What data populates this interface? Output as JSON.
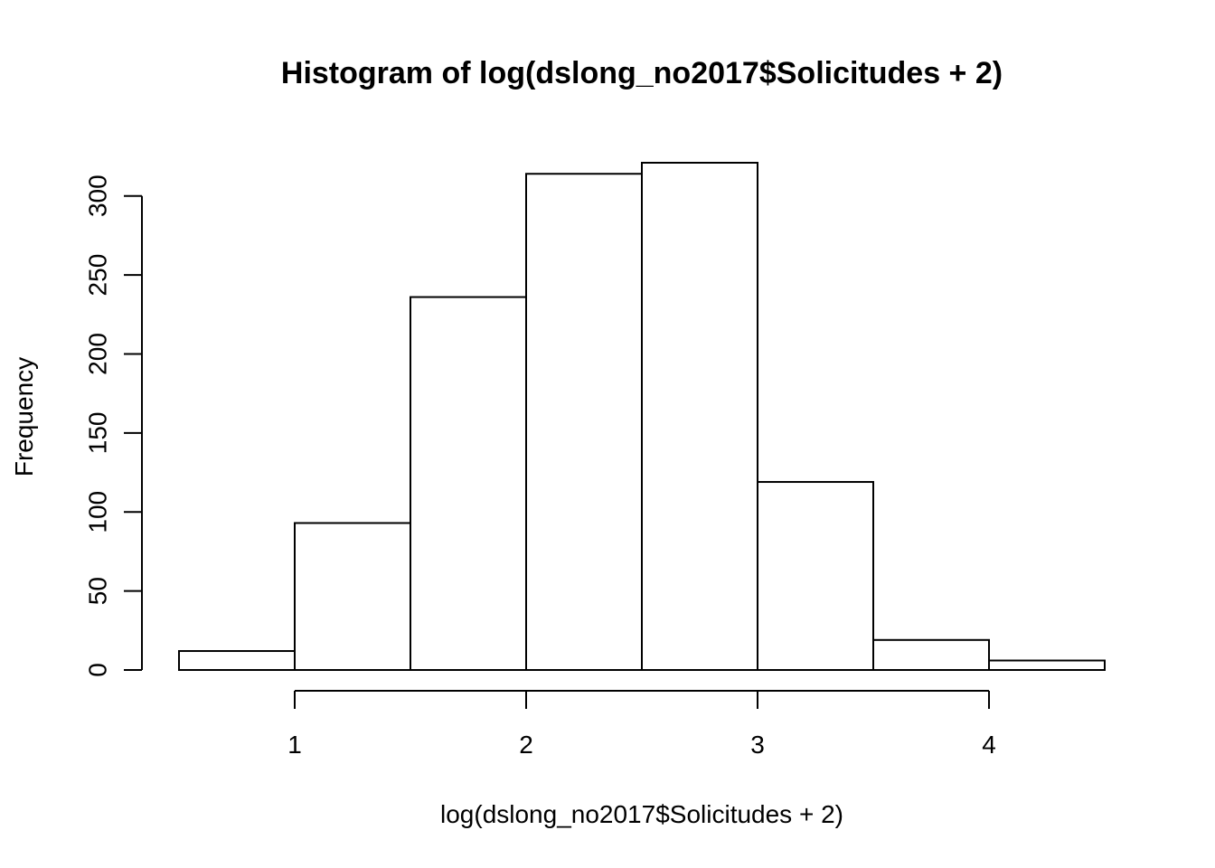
{
  "chart_data": {
    "type": "bar",
    "title": "Histogram of log(dslong_no2017$Solicitudes + 2)",
    "xlabel": "log(dslong_no2017$Solicitudes + 2)",
    "ylabel": "Frequency",
    "bins": [
      {
        "from": 0.5,
        "to": 1.0,
        "count": 12
      },
      {
        "from": 1.0,
        "to": 1.5,
        "count": 93
      },
      {
        "from": 1.5,
        "to": 2.0,
        "count": 236
      },
      {
        "from": 2.0,
        "to": 2.5,
        "count": 314
      },
      {
        "from": 2.5,
        "to": 3.0,
        "count": 321
      },
      {
        "from": 3.0,
        "to": 3.5,
        "count": 119
      },
      {
        "from": 3.5,
        "to": 4.0,
        "count": 19
      },
      {
        "from": 4.0,
        "to": 4.5,
        "count": 6
      }
    ],
    "xlim": [
      0.5,
      4.5
    ],
    "ylim": [
      0,
      321
    ],
    "x_ticks": [
      1,
      2,
      3,
      4
    ],
    "x_tick_labels": [
      "1",
      "2",
      "3",
      "4"
    ],
    "y_ticks": [
      0,
      50,
      100,
      150,
      200,
      250,
      300
    ],
    "y_tick_labels": [
      "0",
      "50",
      "100",
      "150",
      "200",
      "250",
      "300"
    ],
    "colors": {
      "bar_fill": "#ffffff",
      "bar_stroke": "#000000",
      "axis": "#000000",
      "background": "#ffffff"
    }
  }
}
